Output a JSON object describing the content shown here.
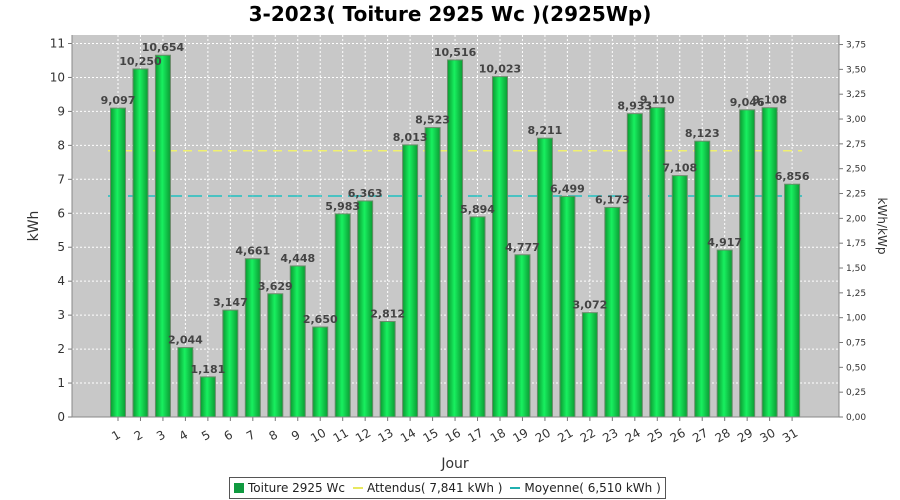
{
  "chart_data": {
    "type": "bar",
    "title": "3-2023( Toiture 2925 Wc )(2925Wp)",
    "xlabel": "Jour",
    "ylabel": "kWh",
    "y2label": "kWh/kWp",
    "ylim": [
      0,
      11.25
    ],
    "y2lim": [
      0,
      3.846
    ],
    "yticks": [
      "0",
      "1",
      "2",
      "3",
      "4",
      "5",
      "6",
      "7",
      "8",
      "9",
      "10",
      "11"
    ],
    "y2ticks": [
      "0,00",
      "0,25",
      "0,50",
      "0,75",
      "1,00",
      "1,25",
      "1,50",
      "1,75",
      "2,00",
      "2,25",
      "2,50",
      "2,75",
      "3,00",
      "3,25",
      "3,50",
      "3,75"
    ],
    "categories": [
      "1",
      "2",
      "3",
      "4",
      "5",
      "6",
      "7",
      "8",
      "9",
      "10",
      "11",
      "12",
      "13",
      "14",
      "15",
      "16",
      "17",
      "18",
      "19",
      "20",
      "21",
      "22",
      "23",
      "24",
      "25",
      "26",
      "27",
      "28",
      "29",
      "30",
      "31"
    ],
    "series": [
      {
        "name": "Toiture 2925 Wc",
        "values": [
          9.097,
          10.25,
          10.654,
          2.044,
          1.181,
          3.147,
          4.661,
          3.629,
          4.448,
          2.65,
          5.983,
          6.363,
          2.812,
          8.013,
          8.523,
          10.516,
          5.894,
          10.023,
          4.777,
          8.211,
          6.499,
          3.072,
          6.173,
          8.933,
          9.11,
          7.108,
          8.123,
          4.917,
          9.046,
          9.108,
          6.856
        ],
        "labels": [
          "9,097",
          "10,250",
          "10,654",
          "2,044",
          "1,181",
          "3,147",
          "4,661",
          "3,629",
          "4,448",
          "2,650",
          "5,983",
          "6,363",
          "2,812",
          "8,013",
          "8,523",
          "10,516",
          "5,894",
          "10,023",
          "4,777",
          "8,211",
          "6,499",
          "3,072",
          "6,173",
          "8,933",
          "9,110",
          "7,108",
          "8,123",
          "4,917",
          "9,046",
          "9,108",
          "6,856"
        ],
        "color": "#10c040"
      }
    ],
    "reference_lines": [
      {
        "name": "Attendus( 7,841 kWh )",
        "value": 7.841,
        "color": "#f0f070"
      },
      {
        "name": "Moyenne( 6,510 kWh )",
        "value": 6.51,
        "color": "#20c0c0"
      }
    ],
    "grid": true,
    "legend": "bottom"
  }
}
